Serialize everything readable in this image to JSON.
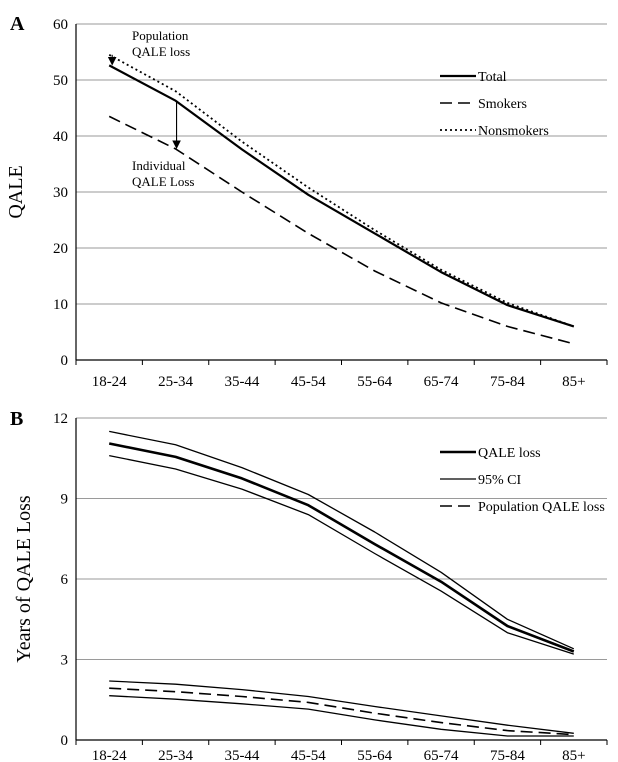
{
  "chart_data": [
    {
      "type": "line",
      "panel_label": "A",
      "ylabel": "QALE",
      "categories": [
        "18-24",
        "25-34",
        "35-44",
        "45-54",
        "55-64",
        "65-74",
        "75-84",
        "85+"
      ],
      "ylim": [
        0,
        60
      ],
      "yticks": [
        0,
        10,
        20,
        30,
        40,
        50,
        60
      ],
      "grid": true,
      "legend_position": "top-right",
      "series": [
        {
          "name": "Total",
          "style": "solid",
          "values": [
            52.6,
            46.3,
            37.6,
            29.5,
            22.6,
            15.7,
            9.8,
            6.0
          ]
        },
        {
          "name": "Smokers",
          "style": "dashed",
          "values": [
            43.5,
            37.7,
            30.0,
            22.6,
            15.9,
            10.2,
            6.0,
            2.9
          ]
        },
        {
          "name": "Nonsmokers",
          "style": "dotted",
          "values": [
            54.5,
            48.0,
            39.0,
            30.8,
            23.2,
            16.1,
            10.2,
            6.0
          ]
        }
      ],
      "annotations": [
        {
          "lines": [
            "Population",
            "QALE loss"
          ],
          "arrow_x": "18-24",
          "arrow_from": 54.5,
          "arrow_to": 52.6
        },
        {
          "lines": [
            "Individual",
            "QALE Loss"
          ],
          "arrow_x": "25-34",
          "arrow_from": 46.3,
          "arrow_to": 37.7
        }
      ]
    },
    {
      "type": "line",
      "panel_label": "B",
      "ylabel": "Years of QALE Loss",
      "categories": [
        "18-24",
        "25-34",
        "35-44",
        "45-54",
        "55-64",
        "65-74",
        "75-84",
        "85+"
      ],
      "ylim": [
        0,
        12
      ],
      "yticks": [
        0,
        3,
        6,
        9,
        12
      ],
      "grid": true,
      "legend_position": "top-right",
      "series": [
        {
          "name": "QALE loss",
          "style": "solid-thick",
          "values": [
            11.05,
            10.55,
            9.75,
            8.75,
            7.3,
            5.9,
            4.25,
            3.3
          ]
        },
        {
          "name": "",
          "style": "solid-thin",
          "values": [
            11.5,
            11.0,
            10.15,
            9.15,
            7.75,
            6.25,
            4.5,
            3.4
          ]
        },
        {
          "name": "95% CI",
          "style": "solid-thin",
          "values": [
            10.6,
            10.1,
            9.35,
            8.4,
            6.95,
            5.55,
            4.0,
            3.2
          ]
        },
        {
          "name": "Population QALE loss",
          "style": "dashed",
          "values": [
            1.93,
            1.8,
            1.62,
            1.4,
            1.0,
            0.65,
            0.35,
            0.2
          ]
        },
        {
          "name": "",
          "style": "solid-thin",
          "values": [
            2.2,
            2.08,
            1.88,
            1.62,
            1.25,
            0.9,
            0.55,
            0.25
          ]
        },
        {
          "name": "",
          "style": "solid-thin",
          "values": [
            1.65,
            1.52,
            1.35,
            1.15,
            0.75,
            0.4,
            0.15,
            0.15
          ]
        }
      ]
    }
  ]
}
